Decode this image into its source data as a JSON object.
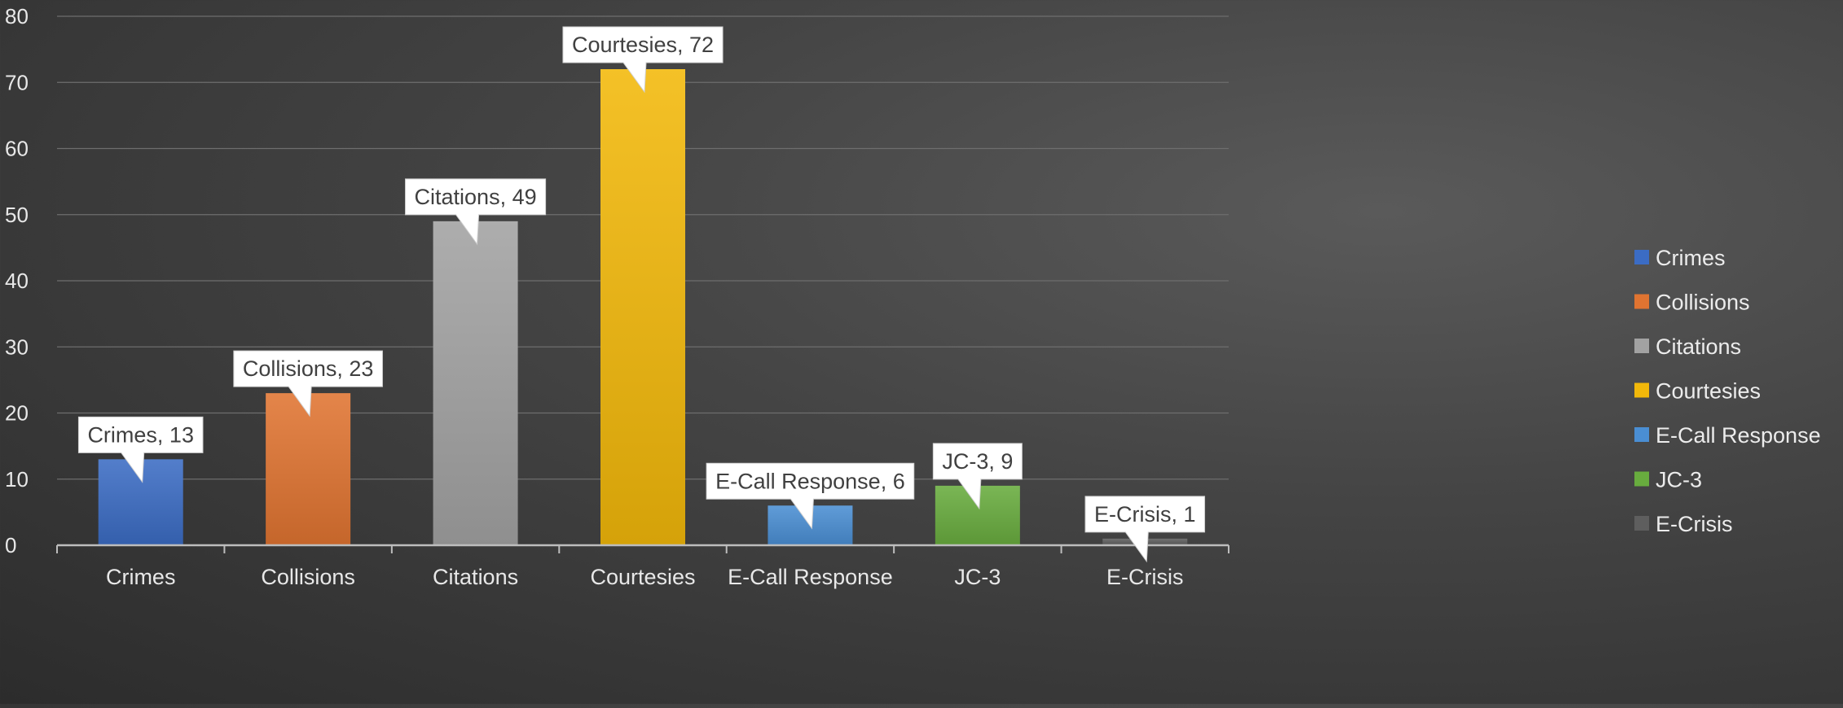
{
  "chart_data": {
    "type": "bar",
    "categories": [
      "Crimes",
      "Collisions",
      "Citations",
      "Courtesies",
      "E-Call Response",
      "JC-3",
      "E-Crisis"
    ],
    "values": [
      13,
      23,
      49,
      72,
      6,
      9,
      1
    ],
    "colors": [
      "#3b6cc4",
      "#e07431",
      "#a2a2a2",
      "#f2b80a",
      "#4a8ed3",
      "#68ac3e",
      "#5e5e5e"
    ],
    "data_labels": [
      "Crimes, 13",
      "Collisions, 23",
      "Citations, 49",
      "Courtesies, 72",
      "E-Call Response, 6",
      "JC-3, 9",
      "E-Crisis, 1"
    ],
    "ylim": [
      0,
      80
    ],
    "yticks": [
      "0",
      "10",
      "20",
      "30",
      "40",
      "50",
      "60",
      "70",
      "80"
    ],
    "grid": true,
    "legend": {
      "position": "right",
      "entries": [
        "Crimes",
        "Collisions",
        "Citations",
        "Courtesies",
        "E-Call Response",
        "JC-3",
        "E-Crisis"
      ]
    }
  }
}
